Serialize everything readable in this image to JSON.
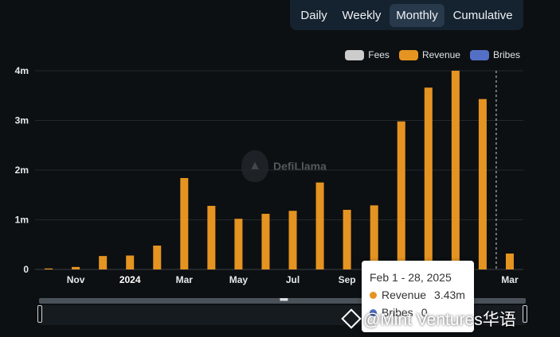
{
  "tabs": [
    {
      "label": "Daily",
      "active": false
    },
    {
      "label": "Weekly",
      "active": false
    },
    {
      "label": "Monthly",
      "active": true
    },
    {
      "label": "Cumulative",
      "active": false
    }
  ],
  "legend": [
    {
      "label": "Fees",
      "color": "#cccccc"
    },
    {
      "label": "Revenue",
      "color": "#e59421"
    },
    {
      "label": "Bribes",
      "color": "#5470c6"
    }
  ],
  "logo_text": "DefiLlama",
  "watermark_text": "@Mint Ventures华语",
  "tooltip": {
    "title": "Feb 1 - 28, 2025",
    "rows": [
      {
        "name": "Revenue",
        "value": "3.43m",
        "color": "#e59421"
      },
      {
        "name": "Bribes",
        "value": "0",
        "color": "#5470c6"
      }
    ]
  },
  "chart_data": {
    "type": "bar",
    "series_name": "Revenue",
    "color": "#e59421",
    "categories": [
      "2023-10",
      "2023-11",
      "2023-12",
      "2024-01",
      "2024-02",
      "2024-03",
      "2024-04",
      "2024-05",
      "2024-06",
      "2024-07",
      "2024-08",
      "2024-09",
      "2024-10",
      "2024-11",
      "2024-12",
      "2025-01",
      "2025-02",
      "2025-03"
    ],
    "values": [
      0.02,
      0.05,
      0.27,
      0.28,
      0.48,
      1.84,
      1.28,
      1.02,
      1.12,
      1.18,
      1.75,
      1.2,
      1.29,
      2.98,
      3.66,
      4.0,
      3.43,
      0.32
    ],
    "unit": "m",
    "ylim": [
      0,
      4
    ],
    "yticks": [
      {
        "value": 0,
        "label": "0"
      },
      {
        "value": 1,
        "label": "1m"
      },
      {
        "value": 2,
        "label": "2m"
      },
      {
        "value": 3,
        "label": "3m"
      },
      {
        "value": 4,
        "label": "4m"
      }
    ],
    "xticks": [
      {
        "index": 1,
        "label": "Nov",
        "bold": false
      },
      {
        "index": 3,
        "label": "2024",
        "bold": true
      },
      {
        "index": 5,
        "label": "Mar",
        "bold": false
      },
      {
        "index": 7,
        "label": "May",
        "bold": false
      },
      {
        "index": 9,
        "label": "Jul",
        "bold": false
      },
      {
        "index": 11,
        "label": "Sep",
        "bold": false
      },
      {
        "index": 17,
        "label": "Mar",
        "bold": false
      }
    ],
    "highlight_index": 16,
    "grid": true,
    "legend_position": "top-right"
  }
}
